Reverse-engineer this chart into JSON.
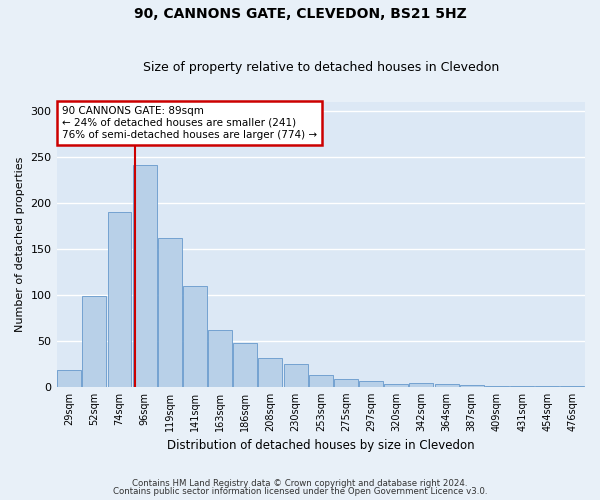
{
  "title1": "90, CANNONS GATE, CLEVEDON, BS21 5HZ",
  "title2": "Size of property relative to detached houses in Clevedon",
  "xlabel": "Distribution of detached houses by size in Clevedon",
  "ylabel": "Number of detached properties",
  "bar_labels": [
    "29sqm",
    "52sqm",
    "74sqm",
    "96sqm",
    "119sqm",
    "141sqm",
    "163sqm",
    "186sqm",
    "208sqm",
    "230sqm",
    "253sqm",
    "275sqm",
    "297sqm",
    "320sqm",
    "342sqm",
    "364sqm",
    "387sqm",
    "409sqm",
    "431sqm",
    "454sqm",
    "476sqm"
  ],
  "bar_values": [
    18,
    99,
    190,
    242,
    162,
    110,
    62,
    48,
    31,
    25,
    13,
    9,
    6,
    3,
    4,
    3,
    2,
    1,
    1,
    1,
    1
  ],
  "bar_color": "#b8d0e8",
  "bar_edge_color": "#6699cc",
  "background_color": "#dce8f5",
  "fig_background_color": "#e8f0f8",
  "grid_color": "#ffffff",
  "vline_x_index": 2.65,
  "annotation_line1": "90 CANNONS GATE: 89sqm",
  "annotation_line2": "← 24% of detached houses are smaller (241)",
  "annotation_line3": "76% of semi-detached houses are larger (774) →",
  "annotation_box_color": "#ffffff",
  "annotation_border_color": "#cc0000",
  "vline_color": "#cc0000",
  "ylim": [
    0,
    310
  ],
  "yticks": [
    0,
    50,
    100,
    150,
    200,
    250,
    300
  ],
  "footnote1": "Contains HM Land Registry data © Crown copyright and database right 2024.",
  "footnote2": "Contains public sector information licensed under the Open Government Licence v3.0."
}
